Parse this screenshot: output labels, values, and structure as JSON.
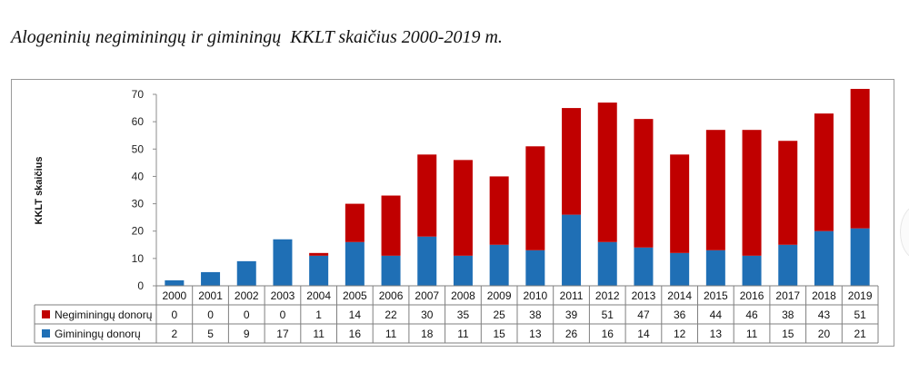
{
  "chart_data": {
    "type": "bar",
    "stacked": true,
    "title": "Alogeninių negiminingų ir giminingų  KKLT skaičius 2000-2019 m.",
    "ylabel": "KKLT skaičius",
    "ylim": [
      0,
      70
    ],
    "yticks": [
      "0",
      "10",
      "20",
      "30",
      "40",
      "50",
      "60",
      "70"
    ],
    "categories": [
      "2000",
      "2001",
      "2002",
      "2003",
      "2004",
      "2005",
      "2006",
      "2007",
      "2008",
      "2009",
      "2010",
      "2011",
      "2012",
      "2013",
      "2014",
      "2015",
      "2016",
      "2017",
      "2018",
      "2019"
    ],
    "series": [
      {
        "name": "Giminingų donorų",
        "color": "#1f6fb5",
        "values": [
          2,
          5,
          9,
          17,
          11,
          16,
          11,
          18,
          11,
          15,
          13,
          26,
          16,
          14,
          12,
          13,
          11,
          15,
          20,
          21
        ]
      },
      {
        "name": "Negiminingų donorų",
        "color": "#c00000",
        "values": [
          0,
          0,
          0,
          0,
          1,
          14,
          22,
          30,
          35,
          25,
          38,
          39,
          51,
          47,
          36,
          44,
          46,
          38,
          43,
          51
        ]
      }
    ],
    "data_table": true,
    "gridlines": false
  }
}
